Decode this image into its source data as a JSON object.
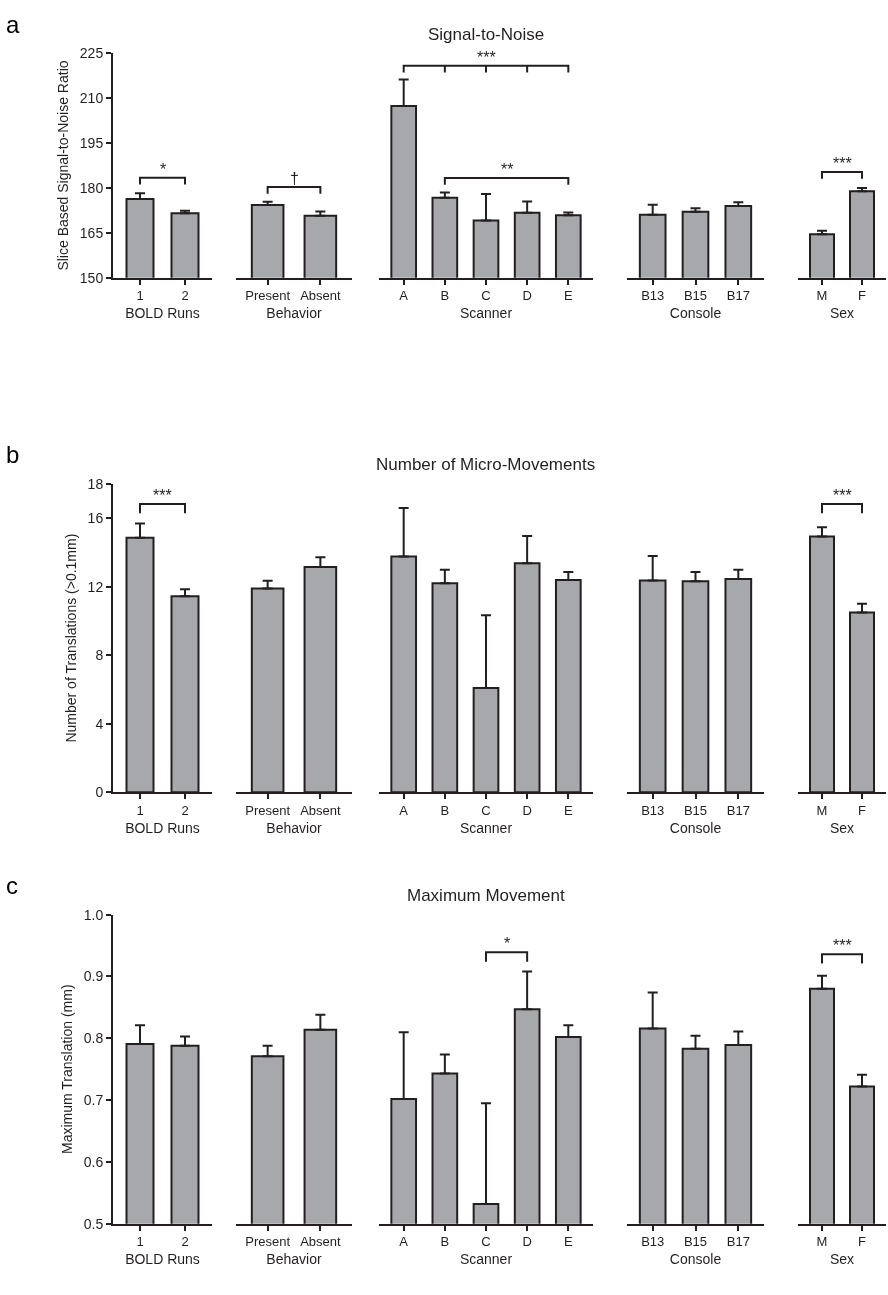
{
  "chart_data": [
    {
      "type": "bar",
      "xlabel": "BOLD Runs",
      "ylabel": "Slice Based Signal-to-Noise Ratio",
      "categories": [
        "1",
        "2"
      ],
      "values": [
        176.3,
        171.5
      ],
      "errors": [
        [
          176.3,
          178.2
        ],
        [
          171.5,
          172.4
        ]
      ],
      "color": "#a7a8ab",
      "ylim": [
        150,
        225
      ],
      "yticks": [
        150,
        165,
        180,
        195,
        210,
        225
      ],
      "annotations": [
        "a",
        "*"
      ]
    },
    {
      "type": "bar",
      "xlabel": "Behavior",
      "categories": [
        "Present",
        "Absent"
      ],
      "values": [
        174.3,
        170.7
      ],
      "errors": [
        [
          174.3,
          175.4
        ],
        [
          170.7,
          172.1
        ]
      ],
      "color": "#a7a8ab",
      "ylim": [
        150,
        225
      ],
      "tick_labels": "x",
      "annotations": [
        "†"
      ]
    },
    {
      "type": "bar",
      "title": "Signal-to-Noise",
      "xlabel": "Scanner",
      "categories": [
        "A",
        "B",
        "C",
        "D",
        "E"
      ],
      "values": [
        207.4,
        176.7,
        169.1,
        171.7,
        170.9
      ],
      "errors": [
        [
          207.4,
          216.3
        ],
        [
          176.7,
          178.5
        ],
        [
          169.1,
          178.0
        ],
        [
          171.7,
          175.5
        ],
        [
          170.9,
          171.8
        ]
      ],
      "color": "#a7a8ab",
      "ylim": [
        150,
        225
      ],
      "tick_labels": "x",
      "annotations": [
        "***",
        "**"
      ]
    },
    {
      "type": "bar",
      "xlabel": "Console",
      "categories": [
        "B13",
        "B15",
        "B17"
      ],
      "values": [
        171.0,
        172.0,
        174.0
      ],
      "errors": [
        [
          171.0,
          174.4
        ],
        [
          172.0,
          173.2
        ],
        [
          174.0,
          175.2
        ]
      ],
      "color": "#a7a8ab",
      "ylim": [
        150,
        225
      ],
      "tick_labels": "x"
    },
    {
      "type": "bar",
      "xlabel": "Sex",
      "categories": [
        "M",
        "F"
      ],
      "values": [
        164.5,
        178.9
      ],
      "errors": [
        [
          164.5,
          165.7
        ],
        [
          178.9,
          180.0
        ]
      ],
      "color": "#a7a8ab",
      "ylim": [
        150,
        225
      ],
      "tick_labels": "x",
      "annotations": [
        "***"
      ]
    },
    {
      "type": "bar",
      "xlabel": "BOLD Runs",
      "ylabel": "Number of Translations (>0.1mm)",
      "categories": [
        "1",
        "2"
      ],
      "values": [
        14.86,
        11.45
      ],
      "errors": [
        [
          14.86,
          15.7
        ],
        [
          11.45,
          11.85
        ]
      ],
      "color": "#a7a8ab",
      "ylim": [
        0,
        18
      ],
      "yticks": [
        0,
        4,
        8,
        12,
        16,
        18
      ],
      "annotations": [
        "b",
        "***"
      ]
    },
    {
      "type": "bar",
      "xlabel": "Behavior",
      "categories": [
        "Present",
        "Absent"
      ],
      "values": [
        11.9,
        13.15
      ],
      "errors": [
        [
          11.9,
          12.35
        ],
        [
          13.15,
          13.73
        ]
      ],
      "color": "#a7a8ab",
      "ylim": [
        0,
        18
      ],
      "tick_labels": "x"
    },
    {
      "type": "bar",
      "title": "Number of Micro-Movements",
      "xlabel": "Scanner",
      "categories": [
        "A",
        "B",
        "C",
        "D",
        "E"
      ],
      "values": [
        13.77,
        12.2,
        6.09,
        13.37,
        12.39
      ],
      "errors": [
        [
          13.77,
          16.6
        ],
        [
          12.2,
          13.0
        ],
        [
          6.09,
          10.33
        ],
        [
          13.37,
          14.96
        ],
        [
          12.39,
          12.86
        ]
      ],
      "color": "#a7a8ab",
      "ylim": [
        0,
        18
      ],
      "tick_labels": "x"
    },
    {
      "type": "bar",
      "xlabel": "Console",
      "categories": [
        "B13",
        "B15",
        "B17"
      ],
      "values": [
        12.36,
        12.32,
        12.46
      ],
      "errors": [
        [
          12.36,
          13.8
        ],
        [
          12.32,
          12.86
        ],
        [
          12.46,
          13.0
        ]
      ],
      "color": "#a7a8ab",
      "ylim": [
        0,
        18
      ],
      "tick_labels": "x"
    },
    {
      "type": "bar",
      "xlabel": "Sex",
      "categories": [
        "M",
        "F"
      ],
      "values": [
        14.93,
        10.5
      ],
      "errors": [
        [
          14.93,
          15.47
        ],
        [
          10.5,
          11.0
        ]
      ],
      "color": "#a7a8ab",
      "ylim": [
        0,
        18
      ],
      "tick_labels": "x",
      "annotations": [
        "***"
      ]
    },
    {
      "type": "bar",
      "xlabel": "BOLD Runs",
      "ylabel": "Maximum Translation (mm)",
      "categories": [
        "1",
        "2"
      ],
      "values": [
        0.791,
        0.788
      ],
      "errors": [
        [
          0.791,
          0.821
        ],
        [
          0.788,
          0.803
        ]
      ],
      "color": "#a7a8ab",
      "ylim": [
        0.5,
        1.0
      ],
      "yticks": [
        0.5,
        0.6,
        0.7,
        0.8,
        0.9,
        {
          "value": 1.0,
          "label": "1.0"
        }
      ],
      "annotations": [
        "c"
      ]
    },
    {
      "type": "bar",
      "xlabel": "Behavior",
      "categories": [
        "Present",
        "Absent"
      ],
      "values": [
        0.771,
        0.814
      ],
      "errors": [
        [
          0.771,
          0.788
        ],
        [
          0.814,
          0.838
        ]
      ],
      "color": "#a7a8ab",
      "ylim": [
        0.5,
        1.0
      ],
      "tick_labels": "x"
    },
    {
      "type": "bar",
      "title": "Maximum Movement",
      "xlabel": "Scanner",
      "categories": [
        "A",
        "B",
        "C",
        "D",
        "E"
      ],
      "values": [
        0.702,
        0.743,
        0.532,
        0.847,
        0.802
      ],
      "errors": [
        [
          0.702,
          0.81
        ],
        [
          0.743,
          0.774
        ],
        [
          0.532,
          0.695
        ],
        [
          0.847,
          0.908
        ],
        [
          0.802,
          0.821
        ]
      ],
      "color": "#a7a8ab",
      "ylim": [
        0.5,
        1.0
      ],
      "tick_labels": "x",
      "annotations": [
        "*"
      ]
    },
    {
      "type": "bar",
      "xlabel": "Console",
      "categories": [
        "B13",
        "B15",
        "B17"
      ],
      "values": [
        0.816,
        0.783,
        0.789
      ],
      "errors": [
        [
          0.816,
          0.874
        ],
        [
          0.783,
          0.804
        ],
        [
          0.789,
          0.811
        ]
      ],
      "color": "#a7a8ab",
      "ylim": [
        0.5,
        1.0
      ],
      "tick_labels": "x"
    },
    {
      "type": "bar",
      "xlabel": "Sex",
      "categories": [
        "M",
        "F"
      ],
      "values": [
        0.88,
        0.722
      ],
      "errors": [
        [
          0.88,
          0.901
        ],
        [
          0.722,
          0.741
        ]
      ],
      "color": "#a7a8ab",
      "ylim": [
        0.5,
        1.0
      ],
      "tick_labels": "x",
      "annotations": [
        "***"
      ]
    }
  ]
}
